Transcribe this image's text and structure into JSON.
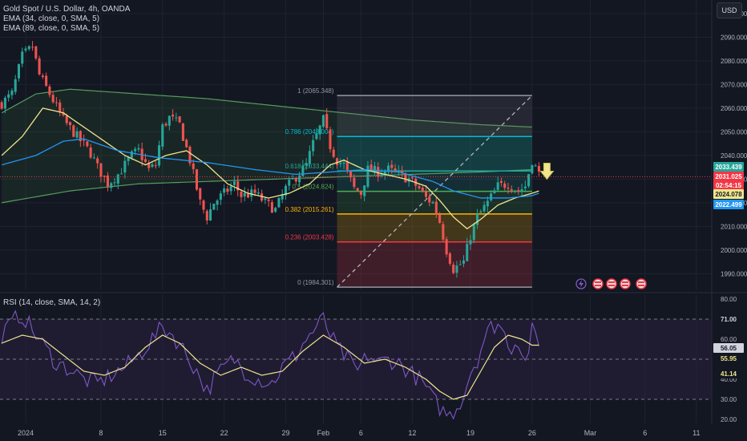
{
  "legend": {
    "symbol": "Gold Spot / U.S. Dollar, 4h, OANDA",
    "ema1": "EMA (34, close, 0, SMA, 5)",
    "ema2": "EMA (89, close, 0, SMA, 5)",
    "rsi": "RSI (14, close, SMA, 14, 2)"
  },
  "currency_button": "USD",
  "colors": {
    "background": "#131722",
    "grid": "#1f2330",
    "up": "#26a69a",
    "down": "#ef5350",
    "ema34": "#f0e68c",
    "ema89": "#2196f3",
    "rsi": "#7e57c2",
    "rsi_ma": "#f0e68c",
    "rsi_band": "#2a2140"
  },
  "chart_data": [
    {
      "type": "candlestick",
      "title": "Gold Spot / U.S. Dollar, 4h, OANDA",
      "y_ticks": [
        1990,
        2000,
        2010,
        2020,
        2030,
        2040,
        2050,
        2060,
        2070,
        2080,
        2090,
        2100
      ],
      "y_tick_labels": [
        "1990.000",
        "2000.000",
        "2010.000",
        "2020.000",
        "2030.000",
        "2040.000",
        "2050.000",
        "2060.000",
        "2070.000",
        "2080.000",
        "2090.000",
        "2100.000"
      ],
      "ylim": [
        1983,
        2103
      ],
      "x_axis": {
        "labels": [
          "2024",
          "8",
          "15",
          "22",
          "29",
          "Feb",
          "6",
          "12",
          "19",
          "26",
          "Mar",
          "6",
          "11"
        ],
        "label_bar_index": [
          7,
          29,
          47,
          65,
          83,
          94,
          105,
          120,
          137,
          155,
          172,
          188,
          203
        ],
        "bar_count": 208,
        "last_bar_index": 157
      },
      "price_path_keypoints": [
        [
          0,
          2062
        ],
        [
          3,
          2066
        ],
        [
          6,
          2082
        ],
        [
          9,
          2086
        ],
        [
          11,
          2074
        ],
        [
          14,
          2066
        ],
        [
          18,
          2055
        ],
        [
          22,
          2048
        ],
        [
          26,
          2041
        ],
        [
          28,
          2035
        ],
        [
          31,
          2028
        ],
        [
          34,
          2032
        ],
        [
          38,
          2040
        ],
        [
          40,
          2042
        ],
        [
          43,
          2034
        ],
        [
          45,
          2036
        ],
        [
          47,
          2052
        ],
        [
          49,
          2056
        ],
        [
          52,
          2053
        ],
        [
          55,
          2038
        ],
        [
          58,
          2020
        ],
        [
          60,
          2014
        ],
        [
          62,
          2020
        ],
        [
          65,
          2024
        ],
        [
          68,
          2028
        ],
        [
          70,
          2023
        ],
        [
          74,
          2024
        ],
        [
          77,
          2020
        ],
        [
          80,
          2017
        ],
        [
          83,
          2026
        ],
        [
          86,
          2031
        ],
        [
          89,
          2036
        ],
        [
          91,
          2045
        ],
        [
          94,
          2055
        ],
        [
          96,
          2044
        ],
        [
          98,
          2038
        ],
        [
          100,
          2036
        ],
        [
          103,
          2026
        ],
        [
          105,
          2024
        ],
        [
          107,
          2034
        ],
        [
          110,
          2033
        ],
        [
          113,
          2034
        ],
        [
          116,
          2032
        ],
        [
          119,
          2030
        ],
        [
          122,
          2026
        ],
        [
          124,
          2022
        ],
        [
          126,
          2020
        ],
        [
          128,
          2012
        ],
        [
          130,
          2000
        ],
        [
          132,
          1992
        ],
        [
          135,
          1995
        ],
        [
          137,
          2006
        ],
        [
          139,
          2014
        ],
        [
          142,
          2020
        ],
        [
          145,
          2027
        ],
        [
          148,
          2028
        ],
        [
          151,
          2025
        ],
        [
          153,
          2027
        ],
        [
          155,
          2038
        ],
        [
          157,
          2032
        ]
      ],
      "series": [
        {
          "name": "EMA (34, close, 0, SMA, 5)",
          "keypoints": [
            [
              0,
              2040
            ],
            [
              6,
              2048
            ],
            [
              12,
              2060
            ],
            [
              18,
              2058
            ],
            [
              24,
              2052
            ],
            [
              30,
              2046
            ],
            [
              36,
              2040
            ],
            [
              42,
              2036
            ],
            [
              48,
              2040
            ],
            [
              54,
              2042
            ],
            [
              60,
              2036
            ],
            [
              66,
              2028
            ],
            [
              72,
              2024
            ],
            [
              78,
              2022
            ],
            [
              84,
              2024
            ],
            [
              90,
              2028
            ],
            [
              96,
              2036
            ],
            [
              100,
              2038
            ],
            [
              106,
              2034
            ],
            [
              112,
              2032
            ],
            [
              118,
              2030
            ],
            [
              124,
              2027
            ],
            [
              128,
              2021
            ],
            [
              132,
              2014
            ],
            [
              136,
              2009
            ],
            [
              140,
              2013
            ],
            [
              145,
              2019
            ],
            [
              150,
              2022
            ],
            [
              155,
              2024
            ],
            [
              157,
              2025
            ]
          ]
        },
        {
          "name": "EMA (89, close, 0, SMA, 5)",
          "keypoints": [
            [
              0,
              2036
            ],
            [
              10,
              2040
            ],
            [
              18,
              2046
            ],
            [
              24,
              2047
            ],
            [
              34,
              2042
            ],
            [
              46,
              2039
            ],
            [
              60,
              2037
            ],
            [
              74,
              2034
            ],
            [
              86,
              2032
            ],
            [
              96,
              2033
            ],
            [
              106,
              2034
            ],
            [
              116,
              2033
            ],
            [
              126,
              2029
            ],
            [
              132,
              2025
            ],
            [
              140,
              2022
            ],
            [
              148,
              2022
            ],
            [
              155,
              2023
            ],
            [
              157,
              2024
            ]
          ]
        },
        {
          "name": "Envelope upper",
          "keypoints": [
            [
              0,
              2058
            ],
            [
              10,
              2066
            ],
            [
              20,
              2068
            ],
            [
              40,
              2066
            ],
            [
              60,
              2064
            ],
            [
              80,
              2061
            ],
            [
              100,
              2058
            ],
            [
              120,
              2055
            ],
            [
              140,
              2053
            ],
            [
              155,
              2052
            ]
          ]
        },
        {
          "name": "Envelope lower",
          "keypoints": [
            [
              0,
              2020
            ],
            [
              20,
              2025
            ],
            [
              40,
              2028
            ],
            [
              60,
              2029
            ],
            [
              80,
              2030
            ],
            [
              100,
              2031
            ],
            [
              120,
              2032
            ],
            [
              140,
              2033
            ],
            [
              155,
              2034
            ]
          ]
        }
      ],
      "fibonacci": {
        "x_range": [
          98,
          155
        ],
        "levels": [
          {
            "ratio": "1",
            "price": 2065.348,
            "label": "1 (2065.348)",
            "color": "#9598a1"
          },
          {
            "ratio": "0.786",
            "price": 2048.004,
            "label": "0.786 (2048.004)",
            "color": "#00bcd4"
          },
          {
            "ratio": "0.618",
            "price": 2033.444,
            "label": "0.618 (2033.444)",
            "color": "#26a69a"
          },
          {
            "ratio": "0.5",
            "price": 2024.824,
            "label": "0.5 (2024.824)",
            "color": "#4caf50"
          },
          {
            "ratio": "0.382",
            "price": 2015.261,
            "label": "0.382 (2015.261)",
            "color": "#ffb300"
          },
          {
            "ratio": "0.236",
            "price": 2003.428,
            "label": "0.236 (2003.428)",
            "color": "#f23645"
          },
          {
            "ratio": "0",
            "price": 1984.301,
            "label": "0 (1984.301)",
            "color": "#9598a1"
          }
        ]
      },
      "price_tags": [
        {
          "value": "2033.439",
          "price": 2033.439,
          "color": "#26a69a"
        },
        {
          "value": "2031.025",
          "price": 2031.025,
          "color": "#f23645"
        },
        {
          "value": "02:54:15",
          "price": 2028.9,
          "color": "#f23645"
        },
        {
          "value": "2024.078",
          "price": 2024.078,
          "color": "#f0e68c"
        },
        {
          "value": "2022.499",
          "price": 2022.499,
          "color": "#2196f3"
        }
      ],
      "current_price": 2031.025
    },
    {
      "type": "line",
      "title": "RSI (14, close, SMA, 14, 2)",
      "y_ticks": [
        20,
        30,
        40,
        50,
        60,
        70,
        80
      ],
      "y_tick_labels": [
        "20.00",
        "30.00",
        "40.00",
        "50.00",
        "60.00",
        "70.00",
        "80.00"
      ],
      "ylim": [
        18,
        82
      ],
      "band": [
        30,
        70
      ],
      "midline": 50,
      "series": [
        {
          "name": "RSI",
          "keypoints": [
            [
              0,
              62
            ],
            [
              3,
              68
            ],
            [
              5,
              72
            ],
            [
              7,
              70
            ],
            [
              9,
              64
            ],
            [
              11,
              60
            ],
            [
              13,
              55
            ],
            [
              16,
              48
            ],
            [
              20,
              45
            ],
            [
              24,
              40
            ],
            [
              28,
              38
            ],
            [
              32,
              42
            ],
            [
              36,
              46
            ],
            [
              40,
              52
            ],
            [
              44,
              60
            ],
            [
              47,
              66
            ],
            [
              50,
              62
            ],
            [
              53,
              55
            ],
            [
              57,
              44
            ],
            [
              60,
              34
            ],
            [
              62,
              40
            ],
            [
              65,
              46
            ],
            [
              68,
              50
            ],
            [
              71,
              44
            ],
            [
              75,
              40
            ],
            [
              79,
              38
            ],
            [
              82,
              46
            ],
            [
              86,
              52
            ],
            [
              89,
              60
            ],
            [
              92,
              66
            ],
            [
              94,
              70
            ],
            [
              96,
              62
            ],
            [
              98,
              56
            ],
            [
              101,
              50
            ],
            [
              104,
              44
            ],
            [
              107,
              52
            ],
            [
              110,
              48
            ],
            [
              113,
              50
            ],
            [
              116,
              48
            ],
            [
              119,
              44
            ],
            [
              122,
              40
            ],
            [
              124,
              36
            ],
            [
              126,
              30
            ],
            [
              129,
              24
            ],
            [
              131,
              22
            ],
            [
              133,
              26
            ],
            [
              135,
              32
            ],
            [
              137,
              44
            ],
            [
              139,
              50
            ],
            [
              141,
              60
            ],
            [
              143,
              66
            ],
            [
              145,
              68
            ],
            [
              147,
              62
            ],
            [
              149,
              56
            ],
            [
              151,
              60
            ],
            [
              153,
              48
            ],
            [
              155,
              64
            ],
            [
              157,
              56
            ]
          ]
        },
        {
          "name": "RSI MA",
          "keypoints": [
            [
              0,
              58
            ],
            [
              6,
              62
            ],
            [
              12,
              60
            ],
            [
              18,
              52
            ],
            [
              24,
              44
            ],
            [
              30,
              42
            ],
            [
              36,
              46
            ],
            [
              42,
              56
            ],
            [
              47,
              62
            ],
            [
              52,
              58
            ],
            [
              58,
              48
            ],
            [
              64,
              42
            ],
            [
              70,
              46
            ],
            [
              76,
              42
            ],
            [
              82,
              44
            ],
            [
              88,
              54
            ],
            [
              94,
              62
            ],
            [
              100,
              56
            ],
            [
              106,
              48
            ],
            [
              112,
              50
            ],
            [
              118,
              46
            ],
            [
              124,
              40
            ],
            [
              128,
              34
            ],
            [
              132,
              30
            ],
            [
              136,
              32
            ],
            [
              140,
              44
            ],
            [
              144,
              56
            ],
            [
              148,
              62
            ],
            [
              152,
              60
            ],
            [
              155,
              57
            ],
            [
              157,
              57
            ]
          ]
        }
      ],
      "tags": [
        {
          "value": "71.00",
          "level": 71.0,
          "color": "#ffffff"
        },
        {
          "value": "56.05",
          "level": 56.05,
          "color": "#7e57c2"
        },
        {
          "value": "55.95",
          "level": 55.95,
          "color": "#f0e68c"
        },
        {
          "value": "41.14",
          "level": 41.14,
          "color": "#f0e68c"
        }
      ]
    }
  ]
}
